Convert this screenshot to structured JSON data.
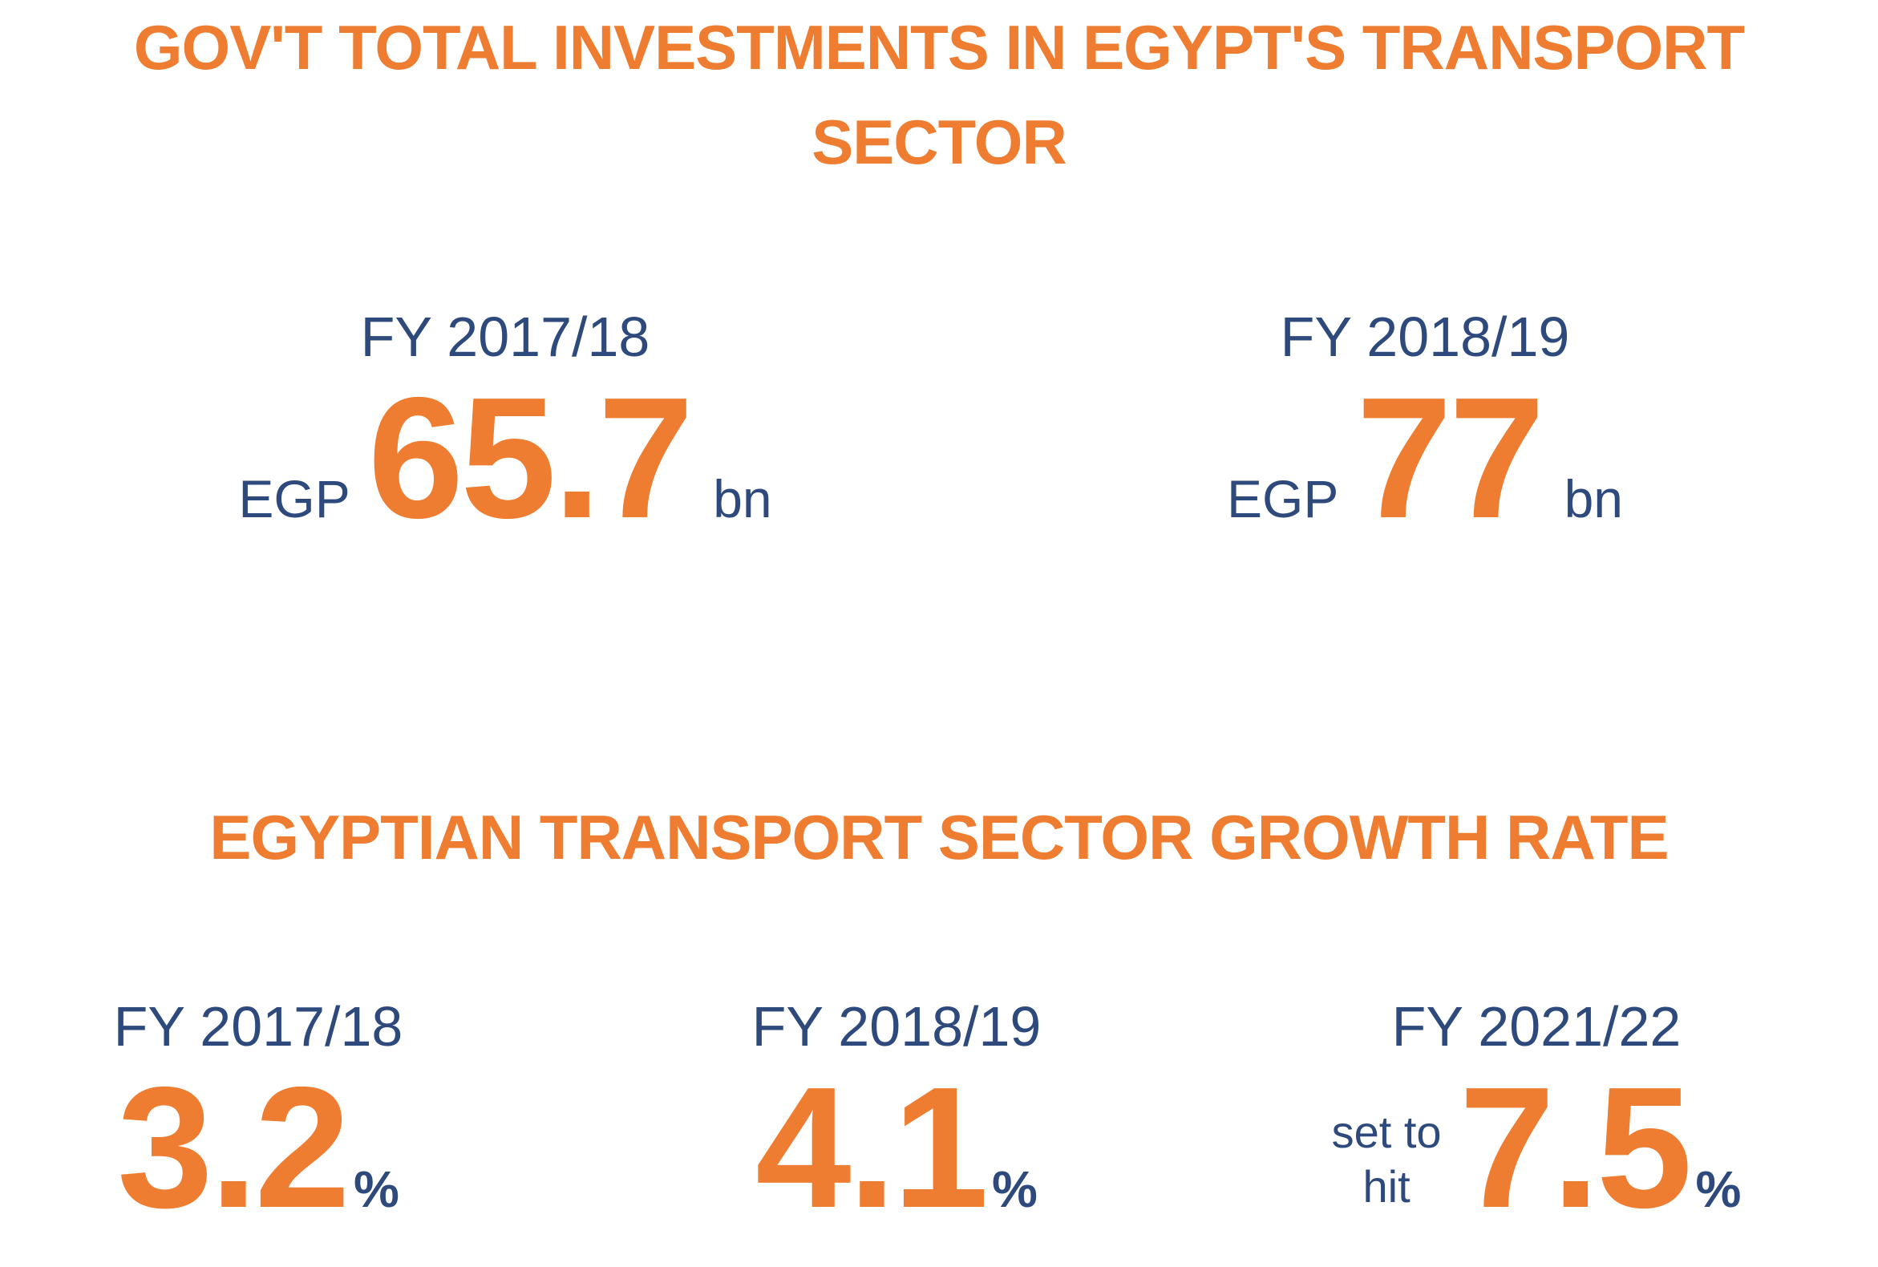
{
  "sections": [
    {
      "title": "GOV'T TOTAL INVESTMENTS IN EGYPT'S TRANSPORT SECTOR",
      "items": [
        {
          "period": "FY 2017/18",
          "prefix": [
            "EGP"
          ],
          "value": 65.7,
          "unit": "bn"
        },
        {
          "period": "FY 2018/19",
          "prefix": [
            "EGP"
          ],
          "value": 77,
          "unit": "bn"
        }
      ]
    },
    {
      "title": "EGYPTIAN TRANSPORT SECTOR GROWTH RATE",
      "items": [
        {
          "period": "FY 2017/18",
          "value": 3.2,
          "unit": "%"
        },
        {
          "period": "FY 2018/19",
          "value": 4.1,
          "unit": "%"
        },
        {
          "period": "FY 2021/22",
          "prefix": [
            "set to",
            "hit"
          ],
          "value": 7.5,
          "unit": "%"
        }
      ]
    }
  ]
}
